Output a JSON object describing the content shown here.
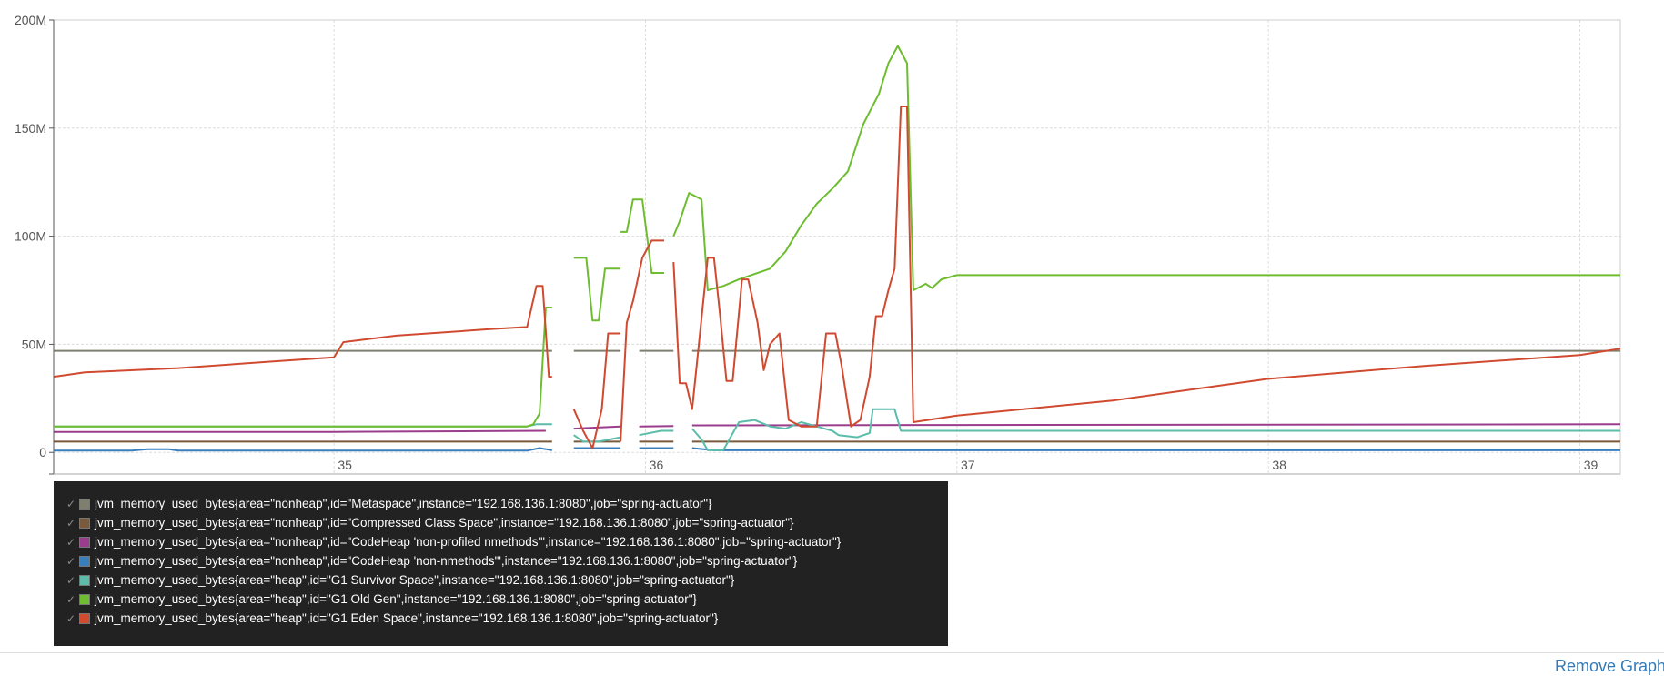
{
  "chart_data": {
    "type": "line",
    "ylim": [
      -10,
      200
    ],
    "xlim": [
      34.1,
      39.13
    ],
    "yticks": [
      {
        "v": 0,
        "label": "0"
      },
      {
        "v": 50,
        "label": "50M"
      },
      {
        "v": 100,
        "label": "100M"
      },
      {
        "v": 150,
        "label": "150M"
      },
      {
        "v": 200,
        "label": "200M"
      }
    ],
    "xticks": [
      {
        "v": 35,
        "label": "35"
      },
      {
        "v": 36,
        "label": "36"
      },
      {
        "v": 37,
        "label": "37"
      },
      {
        "v": 38,
        "label": "38"
      },
      {
        "v": 39,
        "label": "39"
      }
    ],
    "grid": true,
    "legend_position": "bottom-left",
    "series": [
      {
        "name": "jvm_memory_used_bytes{area=\"nonheap\",id=\"Metaspace\",instance=\"192.168.136.1:8080\",job=\"spring-actuator\"}",
        "color": "#7f7f6f",
        "segments": [
          [
            [
              34.1,
              47
            ],
            [
              35.7,
              47
            ]
          ],
          [
            [
              35.77,
              47
            ],
            [
              35.92,
              47
            ]
          ],
          [
            [
              35.98,
              47
            ],
            [
              36.09,
              47
            ]
          ],
          [
            [
              36.15,
              47
            ],
            [
              39.13,
              47
            ]
          ]
        ]
      },
      {
        "name": "jvm_memory_used_bytes{area=\"nonheap\",id=\"Compressed Class Space\",instance=\"192.168.136.1:8080\",job=\"spring-actuator\"}",
        "color": "#7a5a3a",
        "segments": [
          [
            [
              34.1,
              5
            ],
            [
              35.7,
              5
            ]
          ],
          [
            [
              35.77,
              5
            ],
            [
              35.92,
              5
            ]
          ],
          [
            [
              35.98,
              5
            ],
            [
              36.09,
              5
            ]
          ],
          [
            [
              36.15,
              5
            ],
            [
              39.13,
              5
            ]
          ]
        ]
      },
      {
        "name": "jvm_memory_used_bytes{area=\"nonheap\",id=\"CodeHeap 'non-profiled nmethods'\",instance=\"192.168.136.1:8080\",job=\"spring-actuator\"}",
        "color": "#9b3d8c",
        "segments": [
          [
            [
              34.1,
              9.5
            ],
            [
              35.0,
              9.5
            ],
            [
              35.68,
              10
            ]
          ],
          [
            [
              35.77,
              11
            ],
            [
              35.92,
              12
            ]
          ],
          [
            [
              35.98,
              12
            ],
            [
              36.09,
              12.2
            ]
          ],
          [
            [
              36.15,
              12.5
            ],
            [
              37.0,
              12.7
            ],
            [
              39.13,
              13
            ]
          ]
        ]
      },
      {
        "name": "jvm_memory_used_bytes{area=\"nonheap\",id=\"CodeHeap 'non-nmethods'\",instance=\"192.168.136.1:8080\",job=\"spring-actuator\"}",
        "color": "#3a7fbd",
        "segments": [
          [
            [
              34.1,
              0.8
            ],
            [
              34.35,
              0.8
            ],
            [
              34.4,
              1.5
            ],
            [
              34.47,
              1.5
            ],
            [
              34.5,
              0.8
            ],
            [
              35.62,
              0.8
            ],
            [
              35.66,
              2
            ],
            [
              35.7,
              1
            ]
          ],
          [
            [
              35.77,
              2
            ],
            [
              35.92,
              2
            ]
          ],
          [
            [
              35.98,
              2
            ],
            [
              36.09,
              2
            ]
          ],
          [
            [
              36.15,
              2
            ],
            [
              36.22,
              1
            ],
            [
              39.13,
              1
            ]
          ]
        ]
      },
      {
        "name": "jvm_memory_used_bytes{area=\"heap\",id=\"G1 Survivor Space\",instance=\"192.168.136.1:8080\",job=\"spring-actuator\"}",
        "color": "#5bbcaa",
        "segments": [
          [
            [
              34.1,
              12
            ],
            [
              35.62,
              12
            ],
            [
              35.65,
              13
            ],
            [
              35.7,
              13
            ]
          ],
          [
            [
              35.77,
              8
            ],
            [
              35.8,
              5
            ],
            [
              35.85,
              5
            ],
            [
              35.92,
              7
            ]
          ],
          [
            [
              35.98,
              8
            ],
            [
              36.05,
              10
            ],
            [
              36.09,
              10
            ]
          ],
          [
            [
              36.15,
              11
            ],
            [
              36.18,
              6
            ],
            [
              36.2,
              1
            ],
            [
              36.25,
              1
            ],
            [
              36.3,
              14
            ],
            [
              36.35,
              15
            ],
            [
              36.4,
              12
            ],
            [
              36.45,
              11
            ],
            [
              36.5,
              14
            ],
            [
              36.55,
              12
            ],
            [
              36.6,
              10
            ],
            [
              36.62,
              8
            ],
            [
              36.68,
              7
            ],
            [
              36.72,
              9
            ],
            [
              36.73,
              20
            ],
            [
              36.8,
              20
            ],
            [
              36.82,
              10
            ],
            [
              37.0,
              10
            ],
            [
              39.13,
              10
            ]
          ]
        ]
      },
      {
        "name": "jvm_memory_used_bytes{area=\"heap\",id=\"G1 Old Gen\",instance=\"192.168.136.1:8080\",job=\"spring-actuator\"}",
        "color": "#6ebd31",
        "segments": [
          [
            [
              34.1,
              12
            ],
            [
              35.62,
              12
            ],
            [
              35.64,
              13
            ],
            [
              35.66,
              18
            ],
            [
              35.68,
              67
            ],
            [
              35.7,
              67
            ]
          ],
          [
            [
              35.77,
              90
            ],
            [
              35.81,
              90
            ],
            [
              35.83,
              61
            ],
            [
              35.85,
              61
            ],
            [
              35.87,
              85
            ],
            [
              35.9,
              85
            ],
            [
              35.92,
              85
            ]
          ],
          [
            [
              35.92,
              102
            ],
            [
              35.94,
              102
            ],
            [
              35.96,
              117
            ],
            [
              35.99,
              117
            ],
            [
              36.02,
              83
            ],
            [
              36.06,
              83
            ]
          ],
          [
            [
              36.09,
              100
            ],
            [
              36.11,
              107
            ],
            [
              36.14,
              120
            ],
            [
              36.18,
              117
            ],
            [
              36.2,
              75
            ],
            [
              36.25,
              77
            ],
            [
              36.3,
              80
            ],
            [
              36.4,
              85
            ],
            [
              36.45,
              93
            ],
            [
              36.5,
              105
            ],
            [
              36.55,
              115
            ],
            [
              36.6,
              122
            ],
            [
              36.65,
              130
            ],
            [
              36.7,
              152
            ],
            [
              36.75,
              166
            ],
            [
              36.78,
              180
            ],
            [
              36.81,
              188
            ],
            [
              36.84,
              180
            ],
            [
              36.86,
              75
            ],
            [
              36.9,
              78
            ],
            [
              36.92,
              76
            ],
            [
              36.95,
              80
            ],
            [
              37.0,
              82
            ],
            [
              39.13,
              82
            ]
          ]
        ]
      },
      {
        "name": "jvm_memory_used_bytes{area=\"heap\",id=\"G1 Eden Space\",instance=\"192.168.136.1:8080\",job=\"spring-actuator\"}",
        "color": "#d04a30",
        "segments": [
          [
            [
              34.1,
              35
            ],
            [
              34.2,
              37
            ],
            [
              34.5,
              39
            ],
            [
              34.8,
              42
            ],
            [
              35.0,
              44
            ],
            [
              35.03,
              51
            ],
            [
              35.2,
              54
            ],
            [
              35.5,
              57
            ],
            [
              35.62,
              58
            ],
            [
              35.65,
              77
            ],
            [
              35.67,
              77
            ],
            [
              35.69,
              35
            ],
            [
              35.7,
              35
            ]
          ],
          [
            [
              35.77,
              20
            ],
            [
              35.8,
              10
            ],
            [
              35.83,
              2
            ],
            [
              35.86,
              20
            ],
            [
              35.88,
              55
            ],
            [
              35.92,
              55
            ]
          ],
          [
            [
              35.92,
              5
            ],
            [
              35.94,
              60
            ],
            [
              35.96,
              70
            ],
            [
              35.99,
              90
            ],
            [
              36.02,
              98
            ],
            [
              36.06,
              98
            ]
          ],
          [
            [
              36.09,
              88
            ],
            [
              36.11,
              32
            ],
            [
              36.13,
              32
            ],
            [
              36.15,
              20
            ],
            [
              36.18,
              62
            ],
            [
              36.2,
              90
            ],
            [
              36.22,
              90
            ],
            [
              36.24,
              63
            ],
            [
              36.26,
              33
            ],
            [
              36.28,
              33
            ],
            [
              36.31,
              80
            ],
            [
              36.33,
              80
            ],
            [
              36.36,
              60
            ],
            [
              36.38,
              38
            ],
            [
              36.4,
              50
            ],
            [
              36.43,
              55
            ],
            [
              36.46,
              15
            ],
            [
              36.5,
              12
            ],
            [
              36.55,
              12
            ],
            [
              36.58,
              55
            ],
            [
              36.61,
              55
            ],
            [
              36.63,
              40
            ],
            [
              36.66,
              12
            ],
            [
              36.69,
              15
            ],
            [
              36.72,
              35
            ],
            [
              36.74,
              63
            ],
            [
              36.76,
              63
            ],
            [
              36.78,
              75
            ],
            [
              36.8,
              85
            ],
            [
              36.82,
              160
            ],
            [
              36.84,
              160
            ],
            [
              36.86,
              14
            ],
            [
              37.0,
              17
            ],
            [
              37.5,
              24
            ],
            [
              38.0,
              34
            ],
            [
              38.5,
              40
            ],
            [
              39.0,
              45
            ],
            [
              39.13,
              48
            ]
          ]
        ]
      }
    ]
  },
  "legend": {
    "check": "✓",
    "items": [
      {
        "color": "#7f7f6f",
        "label": "jvm_memory_used_bytes{area=\"nonheap\",id=\"Metaspace\",instance=\"192.168.136.1:8080\",job=\"spring-actuator\"}"
      },
      {
        "color": "#7a5a3a",
        "label": "jvm_memory_used_bytes{area=\"nonheap\",id=\"Compressed Class Space\",instance=\"192.168.136.1:8080\",job=\"spring-actuator\"}"
      },
      {
        "color": "#9b3d8c",
        "label": "jvm_memory_used_bytes{area=\"nonheap\",id=\"CodeHeap 'non-profiled nmethods'\",instance=\"192.168.136.1:8080\",job=\"spring-actuator\"}"
      },
      {
        "color": "#3a7fbd",
        "label": "jvm_memory_used_bytes{area=\"nonheap\",id=\"CodeHeap 'non-nmethods'\",instance=\"192.168.136.1:8080\",job=\"spring-actuator\"}"
      },
      {
        "color": "#5bbcaa",
        "label": "jvm_memory_used_bytes{area=\"heap\",id=\"G1 Survivor Space\",instance=\"192.168.136.1:8080\",job=\"spring-actuator\"}"
      },
      {
        "color": "#6ebd31",
        "label": "jvm_memory_used_bytes{area=\"heap\",id=\"G1 Old Gen\",instance=\"192.168.136.1:8080\",job=\"spring-actuator\"}"
      },
      {
        "color": "#d04a30",
        "label": "jvm_memory_used_bytes{area=\"heap\",id=\"G1 Eden Space\",instance=\"192.168.136.1:8080\",job=\"spring-actuator\"}"
      }
    ]
  },
  "footer": {
    "remove_graph": "Remove Graph"
  }
}
